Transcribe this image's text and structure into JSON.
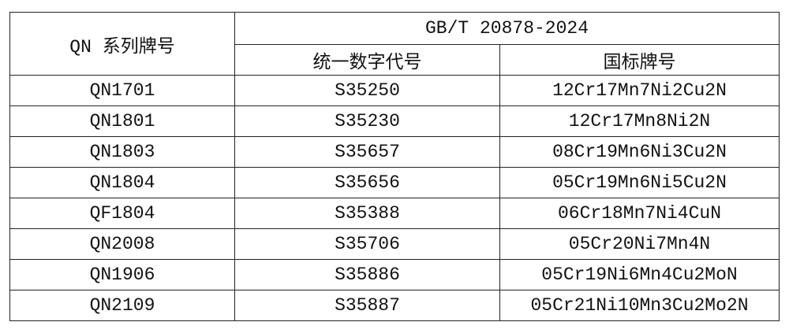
{
  "table": {
    "header": {
      "series_label": "QN 系列牌号",
      "standard": "GB/T 20878-2024",
      "unified_code": "统一数字代号",
      "national_grade": "国标牌号"
    },
    "rows": [
      {
        "qn": "QN1701",
        "code": "S35250",
        "grade": "12Cr17Mn7Ni2Cu2N"
      },
      {
        "qn": "QN1801",
        "code": "S35230",
        "grade": "12Cr17Mn8Ni2N"
      },
      {
        "qn": "QN1803",
        "code": "S35657",
        "grade": "08Cr19Mn6Ni3Cu2N"
      },
      {
        "qn": "QN1804",
        "code": "S35656",
        "grade": "05Cr19Mn6Ni5Cu2N"
      },
      {
        "qn": "QF1804",
        "code": "S35388",
        "grade": "06Cr18Mn7Ni4CuN"
      },
      {
        "qn": "QN2008",
        "code": "S35706",
        "grade": "05Cr20Ni7Mn4N"
      },
      {
        "qn": "QN1906",
        "code": "S35886",
        "grade": "05Cr19Ni6Mn4Cu2MoN"
      },
      {
        "qn": "QN2109",
        "code": "S35887",
        "grade": "05Cr21Ni10Mn3Cu2Mo2N"
      }
    ]
  }
}
